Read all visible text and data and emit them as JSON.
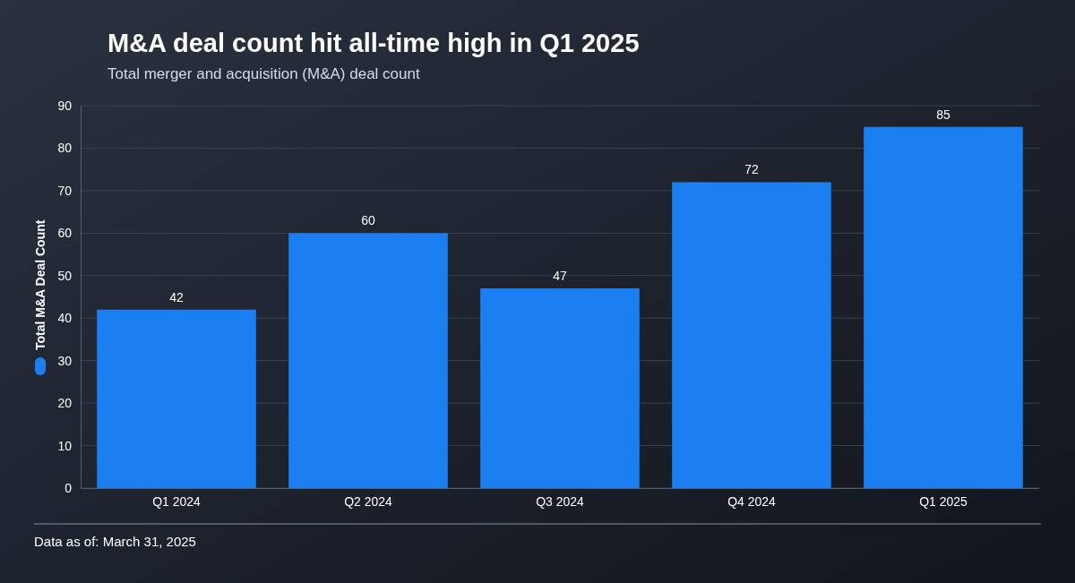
{
  "chart_data": {
    "type": "bar",
    "title": "M&A deal count hit all-time high in Q1 2025",
    "subtitle": "Total merger and acquisition (M&A) deal count",
    "categories": [
      "Q1 2024",
      "Q2 2024",
      "Q3 2024",
      "Q4 2024",
      "Q1 2025"
    ],
    "series": [
      {
        "name": "Total M&A Deal Count",
        "color": "#1b7ff2",
        "values": [
          42,
          60,
          47,
          72,
          85
        ]
      }
    ],
    "ylim": [
      0,
      90
    ],
    "yticks": [
      0,
      10,
      20,
      30,
      40,
      50,
      60,
      70,
      80,
      90
    ],
    "grid": "y",
    "legend": "left",
    "data_labels": true,
    "annotations": [
      "Data as of: March 31, 2025"
    ]
  }
}
